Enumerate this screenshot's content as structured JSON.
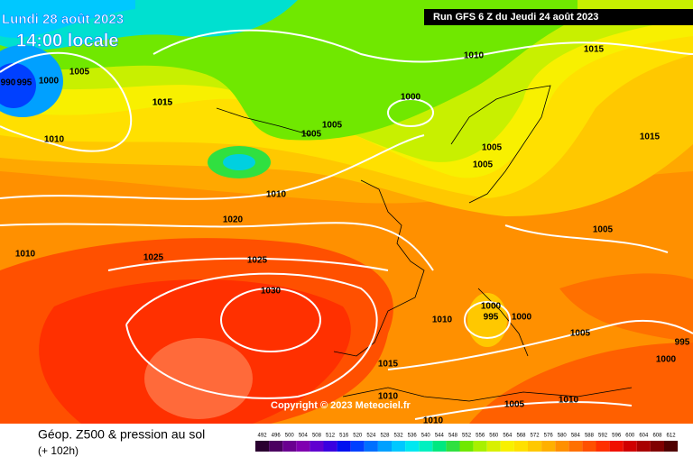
{
  "header": {
    "valid_date": "Lundi 28 août 2023",
    "valid_time": "14:00 locale",
    "run": "Run GFS 6 Z du Jeudi 24 août 2023"
  },
  "copyright": "Copyright © 2023 Meteociel.fr",
  "footer": {
    "title": "Géop. Z500 & pression au sol",
    "lead": "(+ 102h)"
  },
  "legend": {
    "levels": [
      492,
      496,
      500,
      504,
      508,
      512,
      516,
      520,
      524,
      528,
      532,
      536,
      540,
      544,
      548,
      552,
      556,
      560,
      564,
      568,
      572,
      576,
      580,
      584,
      588,
      592,
      596,
      600,
      604,
      608,
      612
    ],
    "colors": [
      "#2a0030",
      "#4b0060",
      "#6a0090",
      "#8000b0",
      "#6000d0",
      "#3a00e0",
      "#0010f0",
      "#0040ff",
      "#0070ff",
      "#00a0ff",
      "#00c8ff",
      "#00e8f0",
      "#00f0c0",
      "#00e880",
      "#30e040",
      "#70e800",
      "#a8f000",
      "#d8f000",
      "#f8f000",
      "#ffe000",
      "#ffc800",
      "#ffb000",
      "#ff9000",
      "#ff7000",
      "#ff5000",
      "#ff3000",
      "#f01000",
      "#d00000",
      "#a80000",
      "#800000",
      "#500000"
    ]
  },
  "isobar_labels": [
    "990",
    "995",
    "1000",
    "1005",
    "1015",
    "1010",
    "1015",
    "1000",
    "1005",
    "1005",
    "1005",
    "1005",
    "1015",
    "1015",
    "1010",
    "1020",
    "1010",
    "1025",
    "1025",
    "1030",
    "1005",
    "1010",
    "1000",
    "995",
    "1000",
    "1005",
    "1015",
    "995",
    "1000",
    "1010",
    "1010",
    "1005",
    "1010",
    "1010"
  ]
}
